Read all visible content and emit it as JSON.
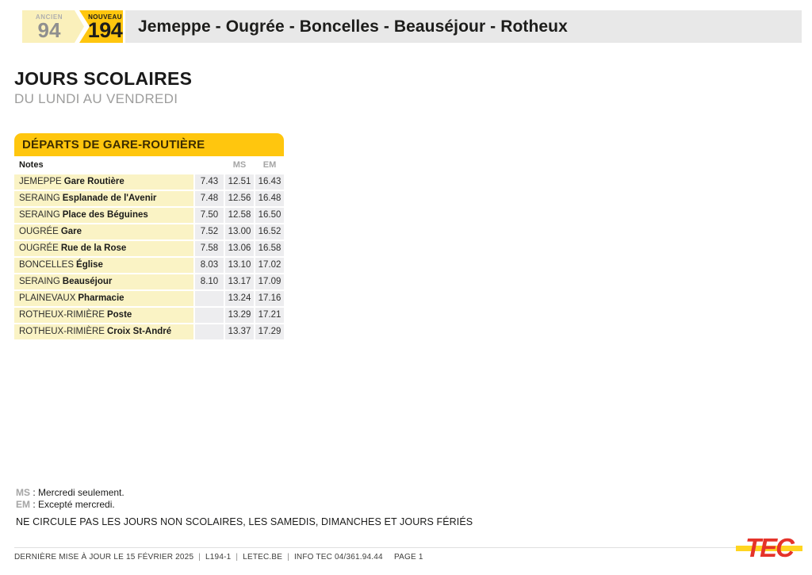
{
  "header": {
    "old_line": {
      "label": "ANCIEN",
      "number": "94"
    },
    "new_line": {
      "label": "NOUVEAU",
      "number": "194"
    },
    "route_title": "Jemeppe - Ougrée - Boncelles - Beauséjour - Rotheux"
  },
  "section": {
    "title": "JOURS SCOLAIRES",
    "subtitle": "DU LUNDI AU VENDREDI"
  },
  "timetable": {
    "title": "DÉPARTS DE GARE-ROUTIÈRE",
    "columns": {
      "notes": "Notes",
      "col1": "",
      "col2": "MS",
      "col3": "EM"
    },
    "rows": [
      {
        "city": "JEMEPPE",
        "stop": "Gare Routière",
        "t1": "7.43",
        "t2": "12.51",
        "t3": "16.43"
      },
      {
        "city": "SERAING",
        "stop": "Esplanade de l'Avenir",
        "t1": "7.48",
        "t2": "12.56",
        "t3": "16.48"
      },
      {
        "city": "SERAING",
        "stop": "Place des Béguines",
        "t1": "7.50",
        "t2": "12.58",
        "t3": "16.50"
      },
      {
        "city": "OUGRÉE",
        "stop": "Gare",
        "t1": "7.52",
        "t2": "13.00",
        "t3": "16.52"
      },
      {
        "city": "OUGRÉE",
        "stop": "Rue de la Rose",
        "t1": "7.58",
        "t2": "13.06",
        "t3": "16.58"
      },
      {
        "city": "BONCELLES",
        "stop": "Église",
        "t1": "8.03",
        "t2": "13.10",
        "t3": "17.02"
      },
      {
        "city": "SERAING",
        "stop": "Beauséjour",
        "t1": "8.10",
        "t2": "13.17",
        "t3": "17.09"
      },
      {
        "city": "PLAINEVAUX",
        "stop": "Pharmacie",
        "t1": "",
        "t2": "13.24",
        "t3": "17.16"
      },
      {
        "city": "ROTHEUX-RIMIÈRE",
        "stop": "Poste",
        "t1": "",
        "t2": "13.29",
        "t3": "17.21"
      },
      {
        "city": "ROTHEUX-RIMIÈRE",
        "stop": "Croix St-André",
        "t1": "",
        "t2": "13.37",
        "t3": "17.29"
      }
    ]
  },
  "legend": [
    {
      "code": "MS",
      "text": " : Mercredi seulement."
    },
    {
      "code": "EM",
      "text": " : Excepté mercredi."
    }
  ],
  "notice": "NE CIRCULE PAS LES JOURS NON SCOLAIRES, LES SAMEDIS, DIMANCHES ET JOURS FÉRIÉS",
  "footer": {
    "updated": "DERNIÈRE MISE À JOUR LE 15 FÉVRIER 2025",
    "line_ref": "L194-1",
    "website": "LETEC.BE",
    "info": "INFO TEC 04/361.94.44",
    "separator": "|",
    "page": "PAGE 1",
    "logo": "TEC"
  },
  "colors": {
    "accent_yellow": "#FFC60E",
    "pale_yellow_badge": "#FAF0BB",
    "row_yellow": "#FAF3C5",
    "cell_gray": "#EDEDEF",
    "title_bar_gray": "#E8E8E8",
    "tec_red": "#E5332A",
    "tec_yellow": "#FFD520"
  }
}
